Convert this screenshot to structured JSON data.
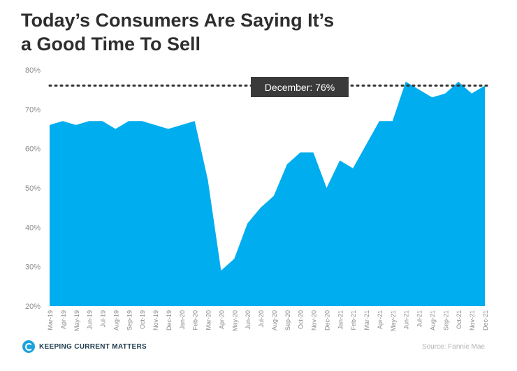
{
  "title": {
    "line1": "Today’s Consumers Are Saying It’s",
    "line2": "a Good Time To Sell"
  },
  "footer": {
    "logo_text": "Keeping Current Matters",
    "source": "Source: Fannie Mae"
  },
  "colors": {
    "area": "#00adef",
    "dotted_line": "#333333",
    "tooltip_bg": "#3a3a3a",
    "tooltip_text": "#ffffff",
    "axis_text": "#8c8c8c"
  },
  "chart_data": {
    "type": "area",
    "categories": [
      "Mar-19",
      "Apr-19",
      "May-19",
      "Jun-19",
      "Jul-19",
      "Aug-19",
      "Sep-19",
      "Oct-19",
      "Nov-19",
      "Dec-19",
      "Jan-20",
      "Feb-20",
      "Mar-20",
      "Apr-20",
      "May-20",
      "Jun-20",
      "Jul-20",
      "Aug-20",
      "Sep-20",
      "Oct-20",
      "Nov-20",
      "Dec-20",
      "Jan-21",
      "Feb-21",
      "Mar-21",
      "Apr-21",
      "May-21",
      "Jun-21",
      "Jul-21",
      "Aug-21",
      "Sep-21",
      "Oct-21",
      "Nov-21",
      "Dec-21"
    ],
    "series": [
      {
        "values": [
          66,
          67,
          66,
          67,
          67,
          65,
          67,
          67,
          66,
          65,
          66,
          67,
          52,
          29,
          32,
          41,
          45,
          48,
          56,
          59,
          59,
          50,
          57,
          55,
          61,
          67,
          67,
          77,
          75,
          73,
          74,
          77,
          74,
          76
        ]
      }
    ],
    "ylim": [
      20,
      80
    ],
    "yticks": [
      "20%",
      "30%",
      "40%",
      "50%",
      "60%",
      "70%",
      "80%"
    ],
    "ytick_values": [
      20,
      30,
      40,
      50,
      60,
      70,
      80
    ],
    "reference_line": {
      "value": 76,
      "label": "December: 76%"
    },
    "grid": false,
    "legend": "none"
  }
}
